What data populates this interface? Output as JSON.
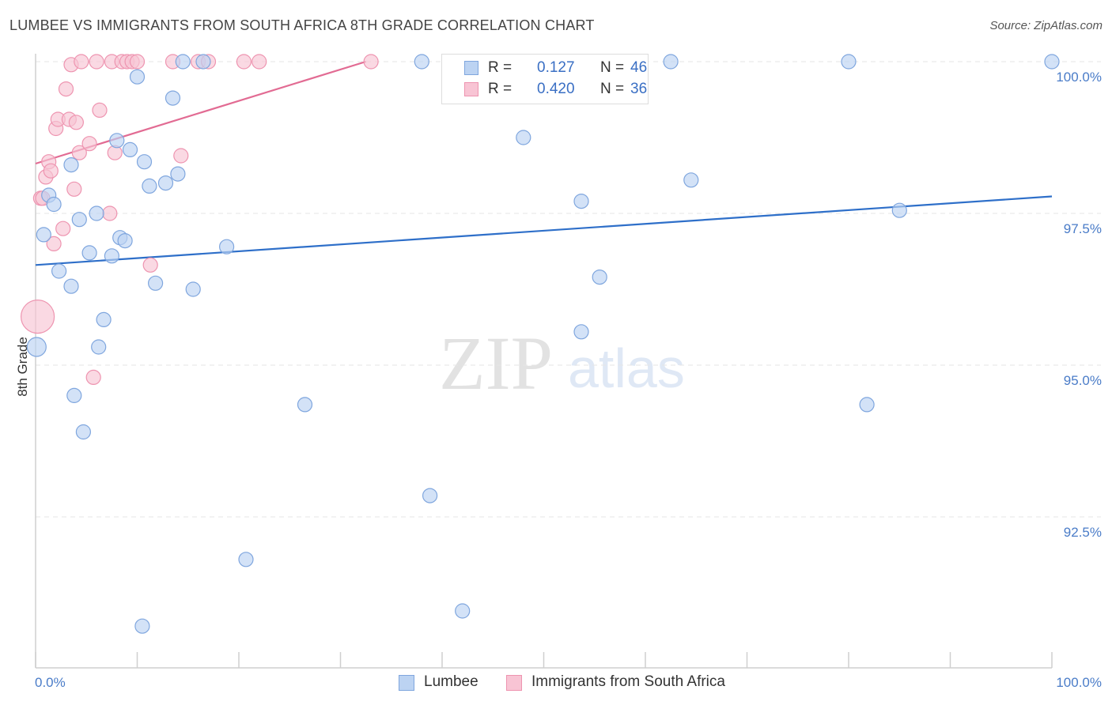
{
  "title": "LUMBEE VS IMMIGRANTS FROM SOUTH AFRICA 8TH GRADE CORRELATION CHART",
  "source": "Source: ZipAtlas.com",
  "watermark": {
    "zip": "ZIP",
    "atlas": "atlas"
  },
  "legend": {
    "rows": [
      {
        "r_label": "R =",
        "r_value": "0.127",
        "n_label": "N =",
        "n_value": "46"
      },
      {
        "r_label": "R =",
        "r_value": "0.420",
        "n_label": "N =",
        "n_value": "36"
      }
    ]
  },
  "bottom_legend": {
    "lumbee": "Lumbee",
    "south_africa": "Immigrants from South Africa"
  },
  "colors": {
    "lumbee_fill": "#bcd3f2",
    "lumbee_stroke": "#7fa6de",
    "lumbee_line": "#2e6fc9",
    "sa_fill": "#f8c4d4",
    "sa_stroke": "#ee94b0",
    "sa_line": "#e26b93",
    "grid": "#e6e6e6",
    "tick_text": "#4a7cc8"
  },
  "chart_data": {
    "type": "scatter",
    "title": "LUMBEE VS IMMIGRANTS FROM SOUTH AFRICA 8TH GRADE CORRELATION CHART",
    "xlabel": "",
    "ylabel": "8th Grade",
    "xlim": [
      0,
      100
    ],
    "ylim": [
      90.2,
      100.2
    ],
    "x_tick_labels": [
      "0.0%",
      "100.0%"
    ],
    "y_ticks": [
      92.5,
      95.0,
      97.5,
      100.0
    ],
    "y_tick_labels": [
      "92.5%",
      "95.0%",
      "97.5%",
      "100.0%"
    ],
    "grid": true,
    "legend_position": "top-center",
    "series": [
      {
        "name": "Lumbee",
        "R": 0.127,
        "N": 46,
        "points": [
          [
            0.1,
            95.3
          ],
          [
            0.8,
            97.15
          ],
          [
            1.3,
            97.8
          ],
          [
            1.8,
            97.65
          ],
          [
            2.3,
            96.55
          ],
          [
            3.5,
            98.3
          ],
          [
            3.5,
            96.3
          ],
          [
            3.8,
            94.5
          ],
          [
            4.3,
            97.4
          ],
          [
            4.7,
            93.9
          ],
          [
            5.3,
            96.85
          ],
          [
            6.0,
            97.5
          ],
          [
            6.2,
            95.3
          ],
          [
            6.7,
            95.75
          ],
          [
            7.5,
            96.8
          ],
          [
            8.0,
            98.7
          ],
          [
            8.3,
            97.1
          ],
          [
            8.8,
            97.05
          ],
          [
            9.3,
            98.55
          ],
          [
            10.0,
            99.75
          ],
          [
            10.5,
            90.7
          ],
          [
            10.7,
            98.35
          ],
          [
            11.2,
            97.95
          ],
          [
            11.8,
            96.35
          ],
          [
            12.8,
            98.0
          ],
          [
            13.5,
            99.4
          ],
          [
            14.0,
            98.15
          ],
          [
            14.5,
            100.0
          ],
          [
            15.5,
            96.25
          ],
          [
            16.5,
            100.0
          ],
          [
            18.8,
            96.95
          ],
          [
            20.7,
            91.8
          ],
          [
            26.5,
            94.35
          ],
          [
            38.0,
            100.0
          ],
          [
            38.8,
            92.85
          ],
          [
            42.0,
            90.95
          ],
          [
            48.0,
            98.75
          ],
          [
            53.7,
            95.55
          ],
          [
            53.7,
            97.7
          ],
          [
            55.5,
            96.45
          ],
          [
            62.5,
            100.0
          ],
          [
            64.5,
            98.05
          ],
          [
            80.0,
            100.0
          ],
          [
            81.8,
            94.35
          ],
          [
            85.0,
            97.55
          ],
          [
            100.0,
            100.0
          ]
        ]
      },
      {
        "name": "Immigrants from South Africa",
        "R": 0.42,
        "N": 36,
        "points": [
          [
            0.2,
            95.8
          ],
          [
            0.5,
            97.75
          ],
          [
            0.7,
            97.75
          ],
          [
            1.0,
            98.1
          ],
          [
            1.3,
            98.35
          ],
          [
            1.5,
            98.2
          ],
          [
            1.8,
            97.0
          ],
          [
            2.0,
            98.9
          ],
          [
            2.2,
            99.05
          ],
          [
            2.7,
            97.25
          ],
          [
            3.0,
            99.55
          ],
          [
            3.3,
            99.05
          ],
          [
            3.5,
            99.95
          ],
          [
            3.8,
            97.9
          ],
          [
            4.0,
            99.0
          ],
          [
            4.3,
            98.5
          ],
          [
            4.5,
            100.0
          ],
          [
            5.3,
            98.65
          ],
          [
            5.7,
            94.8
          ],
          [
            6.0,
            100.0
          ],
          [
            6.3,
            99.2
          ],
          [
            7.3,
            97.5
          ],
          [
            7.5,
            100.0
          ],
          [
            7.8,
            98.5
          ],
          [
            8.5,
            100.0
          ],
          [
            9.0,
            100.0
          ],
          [
            9.5,
            100.0
          ],
          [
            10.0,
            100.0
          ],
          [
            11.3,
            96.65
          ],
          [
            13.5,
            100.0
          ],
          [
            14.3,
            98.45
          ],
          [
            16.0,
            100.0
          ],
          [
            17.0,
            100.0
          ],
          [
            20.5,
            100.0
          ],
          [
            22.0,
            100.0
          ],
          [
            33.0,
            100.0
          ]
        ]
      }
    ],
    "trend_lines": [
      {
        "series": "Lumbee",
        "x": [
          0,
          100
        ],
        "y": [
          96.65,
          97.78
        ]
      },
      {
        "series": "Immigrants from South Africa",
        "x": [
          0,
          32.5
        ],
        "y": [
          98.32,
          100.0
        ]
      }
    ]
  }
}
